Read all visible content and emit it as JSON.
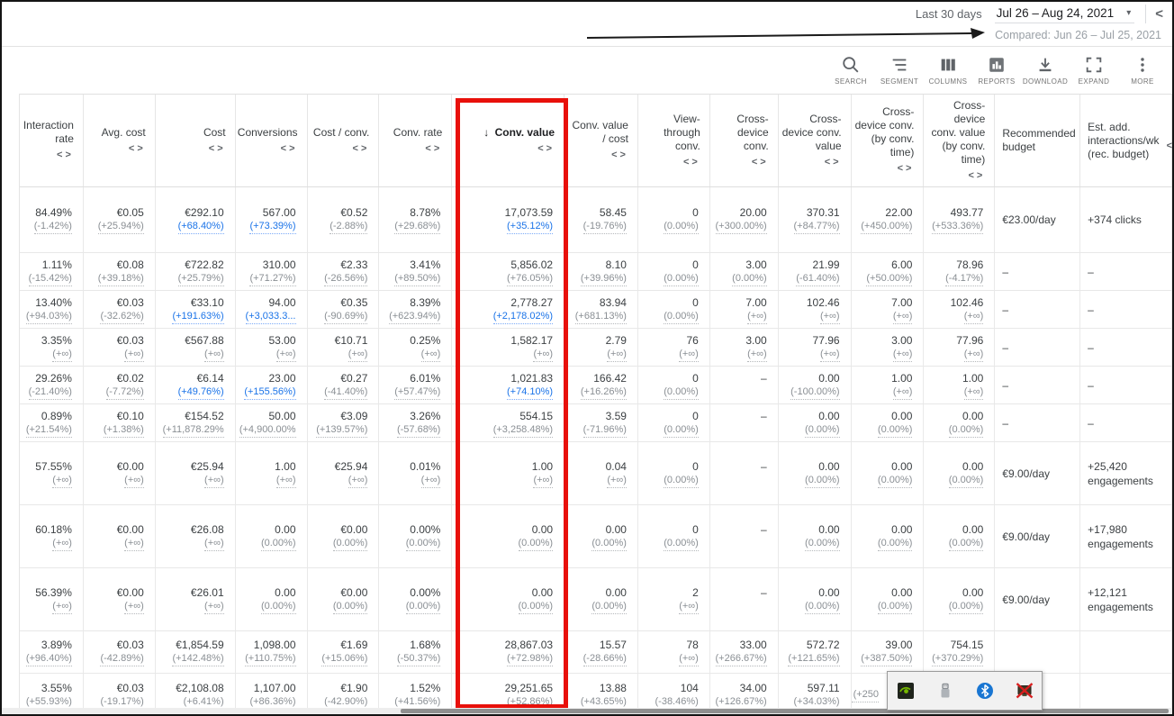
{
  "topbar": {
    "date_preset": "Last 30 days",
    "date_range": "Jul 26 – Aug 24, 2021",
    "caret": "▾",
    "collapse_chevron": "<",
    "compared_label": "Compared: Jun 26 – Jul 25, 2021"
  },
  "toolbar": {
    "items": [
      {
        "label": "SEARCH",
        "icon": "search-icon"
      },
      {
        "label": "SEGMENT",
        "icon": "segment-icon"
      },
      {
        "label": "COLUMNS",
        "icon": "columns-icon"
      },
      {
        "label": "REPORTS",
        "icon": "reports-icon"
      },
      {
        "label": "DOWNLOAD",
        "icon": "download-icon"
      },
      {
        "label": "EXPAND",
        "icon": "expand-icon"
      },
      {
        "label": "MORE",
        "icon": "more-icon"
      }
    ]
  },
  "colors": {
    "link_blue": "#1a73e8",
    "delta_gray": "#8a8f94",
    "value_dark": "#3c4043",
    "annotation_red": "#e8100a",
    "annotation_black": "#1a1a1a"
  },
  "table": {
    "sort_indicator": "↓",
    "compare_icon": "<>",
    "clipped_chevron": "<",
    "columns": [
      {
        "key": "interaction_rate",
        "label": "Interaction rate",
        "align": "right",
        "compare": true
      },
      {
        "key": "avg_cost",
        "label": "Avg. cost",
        "align": "right",
        "compare": true
      },
      {
        "key": "cost",
        "label": "Cost",
        "align": "right",
        "compare": true
      },
      {
        "key": "conversions",
        "label": "Conversions",
        "align": "right",
        "compare": true
      },
      {
        "key": "cost_per_conv",
        "label": "Cost / conv.",
        "align": "right",
        "compare": true
      },
      {
        "key": "conv_rate",
        "label": "Conv. rate",
        "align": "right",
        "compare": true
      },
      {
        "key": "conv_value",
        "label": "Conv. value",
        "align": "right",
        "compare": true,
        "sorted": true
      },
      {
        "key": "conv_value_per_cost",
        "label": "Conv. value / cost",
        "align": "right",
        "compare": true
      },
      {
        "key": "view_through_conv",
        "label": "View-through conv.",
        "align": "right",
        "compare": true
      },
      {
        "key": "cross_device_conv",
        "label": "Cross-device conv.",
        "align": "right",
        "compare": true
      },
      {
        "key": "cross_device_conv_value",
        "label": "Cross-device conv. value",
        "align": "right",
        "compare": true
      },
      {
        "key": "cross_device_conv_by_time",
        "label": "Cross-device conv. (by conv. time)",
        "align": "right",
        "compare": true
      },
      {
        "key": "cross_device_conv_value_by_time",
        "label": "Cross-device conv. value (by conv. time)",
        "align": "right",
        "compare": true
      },
      {
        "key": "recommended_budget",
        "label": "Recommended budget",
        "align": "left",
        "compare": false
      },
      {
        "key": "est_add_interactions",
        "label": "Est. add. interactions/wk (rec. budget)",
        "align": "left",
        "compare": false
      }
    ],
    "rows": [
      {
        "h": 73,
        "budget": "€23.00/day",
        "est": "+374 clicks",
        "cells": [
          [
            "84.49%",
            "(-1.42%)"
          ],
          [
            "€0.05",
            "(+25.94%)"
          ],
          [
            "€292.10",
            "(+68.40%)",
            true
          ],
          [
            "567.00",
            "(+73.39%)",
            true
          ],
          [
            "€0.52",
            "(-2.88%)"
          ],
          [
            "8.78%",
            "(+29.68%)"
          ],
          [
            "17,073.59",
            "(+35.12%)",
            true
          ],
          [
            "58.45",
            "(-19.76%)"
          ],
          [
            "0",
            "(0.00%)"
          ],
          [
            "20.00",
            "(+300.00%)"
          ],
          [
            "370.31",
            "(+84.77%)"
          ],
          [
            "22.00",
            "(+450.00%)"
          ],
          [
            "493.77",
            "(+533.36%)"
          ]
        ]
      },
      {
        "h": 42,
        "budget": "–",
        "est": "–",
        "cells": [
          [
            "1.11%",
            "(-15.42%)"
          ],
          [
            "€0.08",
            "(+39.18%)"
          ],
          [
            "€722.82",
            "(+25.79%)"
          ],
          [
            "310.00",
            "(+71.27%)"
          ],
          [
            "€2.33",
            "(-26.56%)"
          ],
          [
            "3.41%",
            "(+89.50%)"
          ],
          [
            "5,856.02",
            "(+76.05%)"
          ],
          [
            "8.10",
            "(+39.96%)"
          ],
          [
            "0",
            "(0.00%)"
          ],
          [
            "3.00",
            "(0.00%)"
          ],
          [
            "21.99",
            "(-61.40%)"
          ],
          [
            "6.00",
            "(+50.00%)"
          ],
          [
            "78.96",
            "(-4.17%)"
          ]
        ]
      },
      {
        "h": 42,
        "budget": "–",
        "est": "–",
        "cells": [
          [
            "13.40%",
            "(+94.03%)"
          ],
          [
            "€0.03",
            "(-32.62%)"
          ],
          [
            "€33.10",
            "(+191.63%)",
            true
          ],
          [
            "94.00",
            "(+3,033.3...",
            true
          ],
          [
            "€0.35",
            "(-90.69%)"
          ],
          [
            "8.39%",
            "(+623.94%)"
          ],
          [
            "2,778.27",
            "(+2,178.02%)",
            true
          ],
          [
            "83.94",
            "(+681.13%)"
          ],
          [
            "0",
            "(0.00%)"
          ],
          [
            "7.00",
            "(+∞)"
          ],
          [
            "102.46",
            "(+∞)"
          ],
          [
            "7.00",
            "(+∞)"
          ],
          [
            "102.46",
            "(+∞)"
          ]
        ]
      },
      {
        "h": 42,
        "budget": "–",
        "est": "–",
        "cells": [
          [
            "3.35%",
            "(+∞)"
          ],
          [
            "€0.03",
            "(+∞)"
          ],
          [
            "€567.88",
            "(+∞)"
          ],
          [
            "53.00",
            "(+∞)"
          ],
          [
            "€10.71",
            "(+∞)"
          ],
          [
            "0.25%",
            "(+∞)"
          ],
          [
            "1,582.17",
            "(+∞)"
          ],
          [
            "2.79",
            "(+∞)"
          ],
          [
            "76",
            "(+∞)"
          ],
          [
            "3.00",
            "(+∞)"
          ],
          [
            "77.96",
            "(+∞)"
          ],
          [
            "3.00",
            "(+∞)"
          ],
          [
            "77.96",
            "(+∞)"
          ]
        ]
      },
      {
        "h": 42,
        "budget": "–",
        "est": "–",
        "cells": [
          [
            "29.26%",
            "(-21.40%)"
          ],
          [
            "€0.02",
            "(-7.72%)"
          ],
          [
            "€6.14",
            "(+49.76%)",
            true
          ],
          [
            "23.00",
            "(+155.56%)",
            true
          ],
          [
            "€0.27",
            "(-41.40%)"
          ],
          [
            "6.01%",
            "(+57.47%)"
          ],
          [
            "1,021.83",
            "(+74.10%)",
            true
          ],
          [
            "166.42",
            "(+16.26%)"
          ],
          [
            "0",
            "(0.00%)"
          ],
          [
            "–",
            ""
          ],
          [
            "0.00",
            "(-100.00%)"
          ],
          [
            "1.00",
            "(+∞)"
          ],
          [
            "1.00",
            "(+∞)"
          ]
        ]
      },
      {
        "h": 42,
        "budget": "–",
        "est": "–",
        "cells": [
          [
            "0.89%",
            "(+21.54%)"
          ],
          [
            "€0.10",
            "(+1.38%)"
          ],
          [
            "€154.52",
            "(+11,878.29%"
          ],
          [
            "50.00",
            "(+4,900.00%"
          ],
          [
            "€3.09",
            "(+139.57%)"
          ],
          [
            "3.26%",
            "(-57.68%)"
          ],
          [
            "554.15",
            "(+3,258.48%)"
          ],
          [
            "3.59",
            "(-71.96%)"
          ],
          [
            "0",
            "(0.00%)"
          ],
          [
            "–",
            ""
          ],
          [
            "0.00",
            "(0.00%)"
          ],
          [
            "0.00",
            "(0.00%)"
          ],
          [
            "0.00",
            "(0.00%)"
          ]
        ]
      },
      {
        "h": 70,
        "budget": "€9.00/day",
        "est": "+25,420 engagements",
        "cells": [
          [
            "57.55%",
            "(+∞)"
          ],
          [
            "€0.00",
            "(+∞)"
          ],
          [
            "€25.94",
            "(+∞)"
          ],
          [
            "1.00",
            "(+∞)"
          ],
          [
            "€25.94",
            "(+∞)"
          ],
          [
            "0.01%",
            "(+∞)"
          ],
          [
            "1.00",
            "(+∞)"
          ],
          [
            "0.04",
            "(+∞)"
          ],
          [
            "0",
            "(0.00%)"
          ],
          [
            "–",
            ""
          ],
          [
            "0.00",
            "(0.00%)"
          ],
          [
            "0.00",
            "(0.00%)"
          ],
          [
            "0.00",
            "(0.00%)"
          ]
        ]
      },
      {
        "h": 70,
        "budget": "€9.00/day",
        "est": "+17,980 engagements",
        "cells": [
          [
            "60.18%",
            "(+∞)"
          ],
          [
            "€0.00",
            "(+∞)"
          ],
          [
            "€26.08",
            "(+∞)"
          ],
          [
            "0.00",
            "(0.00%)"
          ],
          [
            "€0.00",
            "(0.00%)"
          ],
          [
            "0.00%",
            "(0.00%)"
          ],
          [
            "0.00",
            "(0.00%)"
          ],
          [
            "0.00",
            "(0.00%)"
          ],
          [
            "0",
            "(0.00%)"
          ],
          [
            "–",
            ""
          ],
          [
            "0.00",
            "(0.00%)"
          ],
          [
            "0.00",
            "(0.00%)"
          ],
          [
            "0.00",
            "(0.00%)"
          ]
        ]
      },
      {
        "h": 70,
        "budget": "€9.00/day",
        "est": "+12,121 engagements",
        "cells": [
          [
            "56.39%",
            "(+∞)"
          ],
          [
            "€0.00",
            "(+∞)"
          ],
          [
            "€26.01",
            "(+∞)"
          ],
          [
            "0.00",
            "(0.00%)"
          ],
          [
            "€0.00",
            "(0.00%)"
          ],
          [
            "0.00%",
            "(0.00%)"
          ],
          [
            "0.00",
            "(0.00%)"
          ],
          [
            "0.00",
            "(0.00%)"
          ],
          [
            "2",
            "(+∞)"
          ],
          [
            "–",
            ""
          ],
          [
            "0.00",
            "(0.00%)"
          ],
          [
            "0.00",
            "(0.00%)"
          ],
          [
            "0.00",
            "(0.00%)"
          ]
        ]
      },
      {
        "h": 47,
        "budget": "",
        "est": "",
        "cells": [
          [
            "3.89%",
            "(+96.40%)"
          ],
          [
            "€0.03",
            "(-42.89%)"
          ],
          [
            "€1,854.59",
            "(+142.48%)"
          ],
          [
            "1,098.00",
            "(+110.75%)"
          ],
          [
            "€1.69",
            "(+15.06%)"
          ],
          [
            "1.68%",
            "(-50.37%)"
          ],
          [
            "28,867.03",
            "(+72.98%)"
          ],
          [
            "15.57",
            "(-28.66%)"
          ],
          [
            "78",
            "(+∞)"
          ],
          [
            "33.00",
            "(+266.67%)"
          ],
          [
            "572.72",
            "(+121.65%)"
          ],
          [
            "39.00",
            "(+387.50%)"
          ],
          [
            "754.15",
            "(+370.29%)"
          ]
        ]
      },
      {
        "h": 48,
        "budget": "",
        "est": "",
        "cells": [
          [
            "3.55%",
            "(+55.93%)"
          ],
          [
            "€0.03",
            "(-19.17%)"
          ],
          [
            "€2,108.08",
            "(+6.41%)"
          ],
          [
            "1,107.00",
            "(+86.36%)"
          ],
          [
            "€1.90",
            "(-42.90%)"
          ],
          [
            "1.52%",
            "(+41.56%)"
          ],
          [
            "29,251.65",
            "(+52.86%)"
          ],
          [
            "13.88",
            "(+43.65%)"
          ],
          [
            "104",
            "(-38.46%)"
          ],
          [
            "34.00",
            "(+126.67%)"
          ],
          [
            "597.11",
            "(+34.03%)"
          ],
          [
            "",
            "(+250",
            false,
            "left"
          ],
          [
            "",
            ""
          ]
        ]
      }
    ]
  },
  "tray": {
    "icons": [
      {
        "name": "nvidia-settings-icon"
      },
      {
        "name": "usb-device-icon"
      },
      {
        "name": "bluetooth-icon"
      },
      {
        "name": "device-disabled-icon"
      }
    ]
  }
}
